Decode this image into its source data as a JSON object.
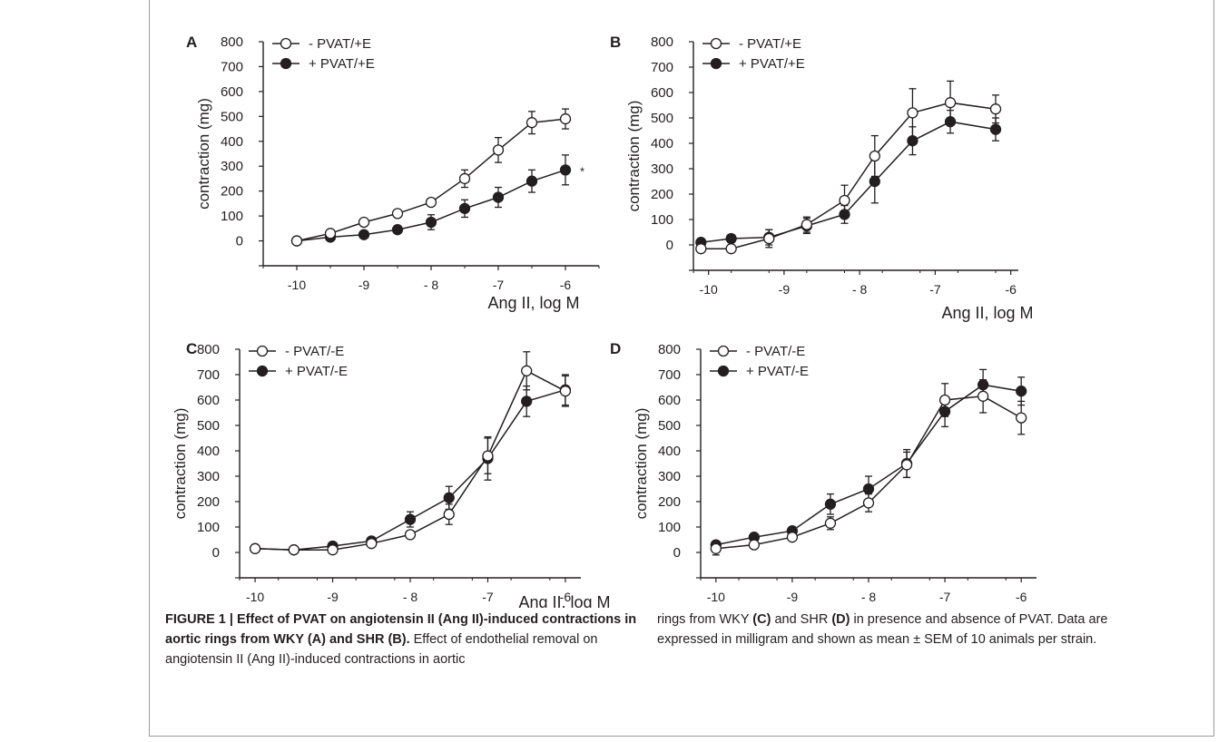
{
  "chart_data": [
    {
      "panel": "A",
      "type": "line",
      "ylabel": "contraction (mg)",
      "xlabel": "Ang II, log M",
      "xlim": [
        -10.5,
        -5.5
      ],
      "ylim": [
        -100,
        800
      ],
      "xticks": [
        -10,
        -9,
        -8,
        -7,
        -6
      ],
      "xticklabels": [
        "-10",
        "-9",
        "- 8",
        "-7",
        "-6"
      ],
      "yticks": [
        0,
        100,
        200,
        300,
        400,
        500,
        600,
        700,
        800
      ],
      "legend_position": "top-left",
      "annotation": "*",
      "series": [
        {
          "name": "- PVAT/+E",
          "marker": "open-circle",
          "x": [
            -10,
            -9.5,
            -9,
            -8.5,
            -8,
            -7.5,
            -7,
            -6.5,
            -6
          ],
          "y": [
            0,
            30,
            75,
            110,
            155,
            250,
            365,
            475,
            490
          ],
          "err": [
            0,
            8,
            10,
            12,
            15,
            35,
            50,
            45,
            40
          ]
        },
        {
          "name": "+ PVAT/+E",
          "marker": "filled-circle",
          "x": [
            -10,
            -9.5,
            -9,
            -8.5,
            -8,
            -7.5,
            -7,
            -6.5,
            -6
          ],
          "y": [
            0,
            15,
            25,
            45,
            75,
            130,
            175,
            240,
            285
          ],
          "err": [
            0,
            8,
            10,
            15,
            30,
            35,
            40,
            45,
            60
          ]
        }
      ]
    },
    {
      "panel": "B",
      "type": "line",
      "ylabel": "contraction (mg)",
      "xlabel": "Ang II, log M",
      "xlim": [
        -10.2,
        -5.9
      ],
      "ylim": [
        -100,
        800
      ],
      "xticks": [
        -10,
        -9,
        -8,
        -7,
        -6
      ],
      "xticklabels": [
        "-10",
        "-9",
        "- 8",
        "-7",
        "-6"
      ],
      "yticks": [
        0,
        100,
        200,
        300,
        400,
        500,
        600,
        700,
        800
      ],
      "legend_position": "top-left",
      "series": [
        {
          "name": "- PVAT/+E",
          "marker": "open-circle",
          "x": [
            -10.1,
            -9.7,
            -9.2,
            -8.7,
            -8.2,
            -7.8,
            -7.3,
            -6.8,
            -6.2
          ],
          "y": [
            -15,
            -15,
            25,
            80,
            175,
            350,
            520,
            560,
            535
          ],
          "err": [
            10,
            10,
            35,
            30,
            60,
            80,
            95,
            85,
            55
          ]
        },
        {
          "name": "+ PVAT/+E",
          "marker": "filled-circle",
          "x": [
            -10.1,
            -9.7,
            -9.2,
            -8.7,
            -8.2,
            -7.8,
            -7.3,
            -6.8,
            -6.2
          ],
          "y": [
            10,
            25,
            30,
            75,
            120,
            250,
            410,
            485,
            455
          ],
          "err": [
            8,
            15,
            30,
            30,
            35,
            85,
            55,
            45,
            45
          ]
        }
      ]
    },
    {
      "panel": "C",
      "type": "line",
      "ylabel": "contraction (mg)",
      "xlabel": "Ang II, log M",
      "xlim": [
        -10.2,
        -5.8
      ],
      "ylim": [
        -100,
        800
      ],
      "xticks": [
        -10,
        -9,
        -8,
        -7,
        -6
      ],
      "xticklabels": [
        "-10",
        "-9",
        "- 8",
        "-7",
        "-6"
      ],
      "yticks": [
        0,
        100,
        200,
        300,
        400,
        500,
        600,
        700,
        800
      ],
      "legend_position": "top-left",
      "series": [
        {
          "name": "- PVAT/-E",
          "marker": "open-circle",
          "x": [
            -10,
            -9.5,
            -9,
            -8.5,
            -8,
            -7.5,
            -7,
            -6.5,
            -6
          ],
          "y": [
            15,
            10,
            10,
            35,
            70,
            150,
            380,
            715,
            635
          ],
          "err": [
            5,
            5,
            8,
            10,
            15,
            40,
            70,
            75,
            60
          ]
        },
        {
          "name": "+ PVAT/-E",
          "marker": "filled-circle",
          "x": [
            -10,
            -9.5,
            -9,
            -8.5,
            -8,
            -7.5,
            -7,
            -6.5,
            -6
          ],
          "y": [
            15,
            10,
            25,
            45,
            130,
            215,
            370,
            595,
            640
          ],
          "err": [
            5,
            5,
            10,
            12,
            30,
            45,
            85,
            60,
            60
          ]
        }
      ]
    },
    {
      "panel": "D",
      "type": "line",
      "ylabel": "contraction (mg)",
      "xlabel": "Ang II, log M",
      "xlim": [
        -10.2,
        -5.8
      ],
      "ylim": [
        -100,
        800
      ],
      "xticks": [
        -10,
        -9,
        -8,
        -7,
        -6
      ],
      "xticklabels": [
        "-10",
        "-9",
        "- 8",
        "-7",
        "-6"
      ],
      "yticks": [
        0,
        100,
        200,
        300,
        400,
        500,
        600,
        700,
        800
      ],
      "legend_position": "top-left",
      "series": [
        {
          "name": "- PVAT/-E",
          "marker": "open-circle",
          "x": [
            -10,
            -9.5,
            -9,
            -8.5,
            -8,
            -7.5,
            -7,
            -6.5,
            -6
          ],
          "y": [
            15,
            30,
            60,
            115,
            195,
            345,
            600,
            615,
            530
          ],
          "err": [
            25,
            10,
            12,
            25,
            35,
            50,
            65,
            65,
            65
          ]
        },
        {
          "name": "+ PVAT/-E",
          "marker": "filled-circle",
          "x": [
            -10,
            -9.5,
            -9,
            -8.5,
            -8,
            -7.5,
            -7,
            -6.5,
            -6
          ],
          "y": [
            30,
            60,
            85,
            190,
            250,
            350,
            555,
            660,
            635
          ],
          "err": [
            10,
            12,
            15,
            40,
            50,
            55,
            60,
            60,
            55
          ]
        }
      ]
    }
  ],
  "caption": {
    "figure_label": "FIGURE 1 | ",
    "bold_title": "Effect of PVAT on angiotensin II (Ang II)-induced contractions in aortic rings from WKY (A) and SHR (B).",
    "text_part1": " Effect of endothelial removal on angiotensin II (Ang II)-induced contractions in aortic",
    "text_part2_a": "rings from WKY ",
    "text_part2_c": "(C)",
    "text_part2_b": " and SHR ",
    "text_part2_d": "(D)",
    "text_part2_e": " in presence and absence of PVAT. Data are expressed in milligram and shown as mean ± SEM of 10 animals per strain."
  }
}
